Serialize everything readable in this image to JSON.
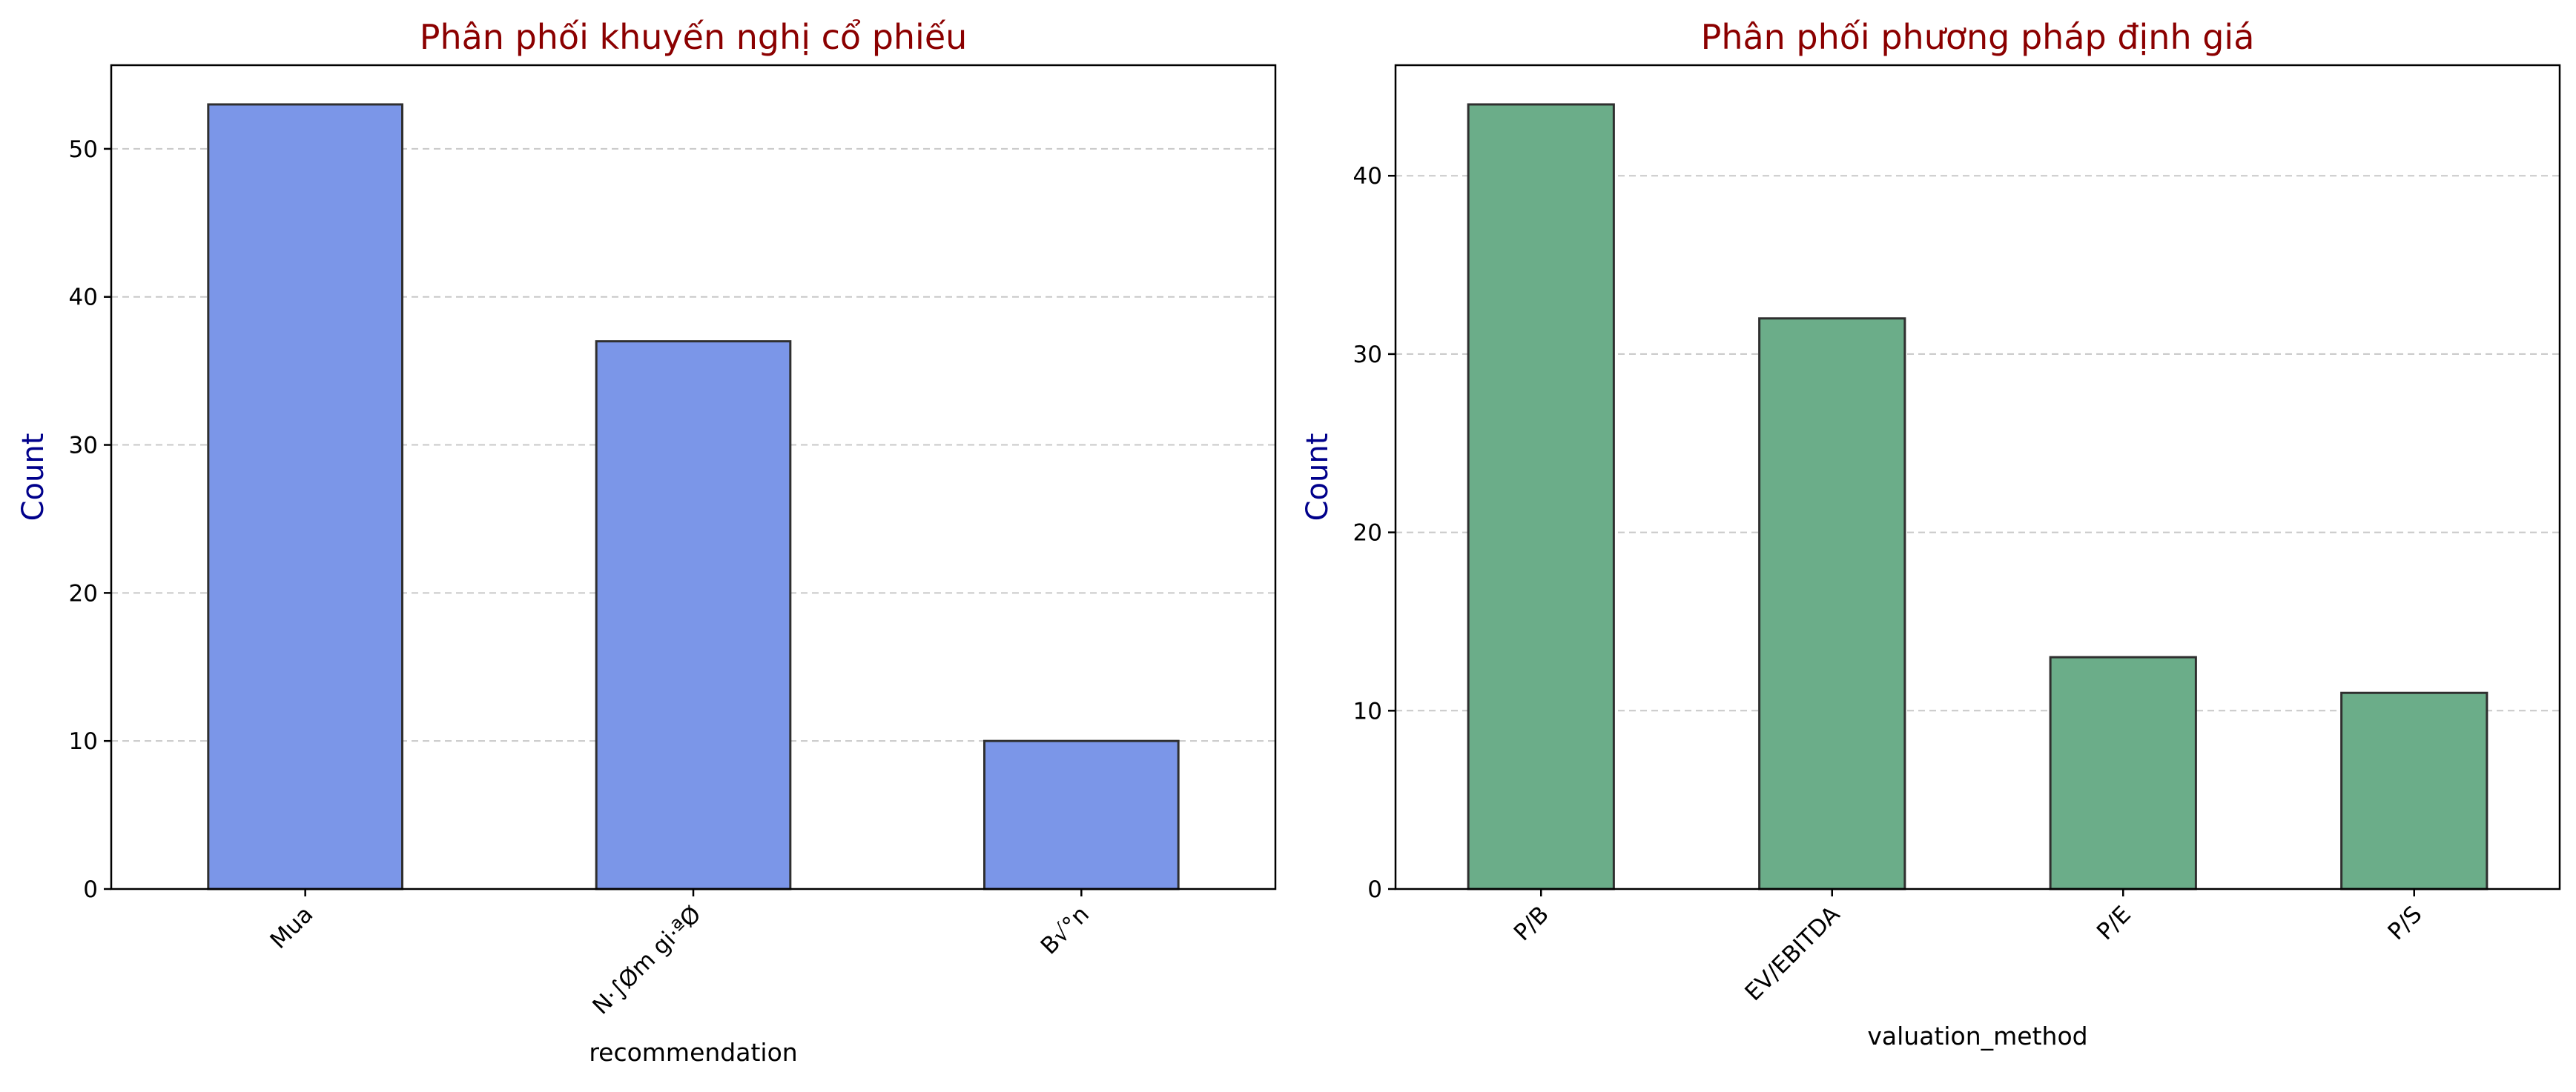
{
  "colors": {
    "title": "#8b0000",
    "ylabel": "#00008b",
    "bar_left": "#7b96e8",
    "bar_right": "#6bad89",
    "bar_edge": "#2f2f2f",
    "grid": "#c8c8c8"
  },
  "chart_data": [
    {
      "type": "bar",
      "title": "Phân phối khuyến nghị cổ phiếu",
      "xlabel": "recommendation",
      "ylabel": "Count",
      "categories": [
        "Mua",
        "N·∫Øm gi·ªØ",
        "B√°n"
      ],
      "values": [
        53,
        37,
        10
      ],
      "ylim": [
        0,
        55.65
      ],
      "yticks": [
        0,
        10,
        20,
        30,
        40,
        50
      ],
      "grid": "y-dashed"
    },
    {
      "type": "bar",
      "title": "Phân phối phương pháp định giá",
      "xlabel": "valuation_method",
      "ylabel": "Count",
      "categories": [
        "P/B",
        "EV/EBITDA",
        "P/E",
        "P/S"
      ],
      "values": [
        44,
        32,
        13,
        11
      ],
      "ylim": [
        0,
        46.2
      ],
      "yticks": [
        0,
        10,
        20,
        30,
        40
      ],
      "grid": "y-dashed"
    }
  ]
}
